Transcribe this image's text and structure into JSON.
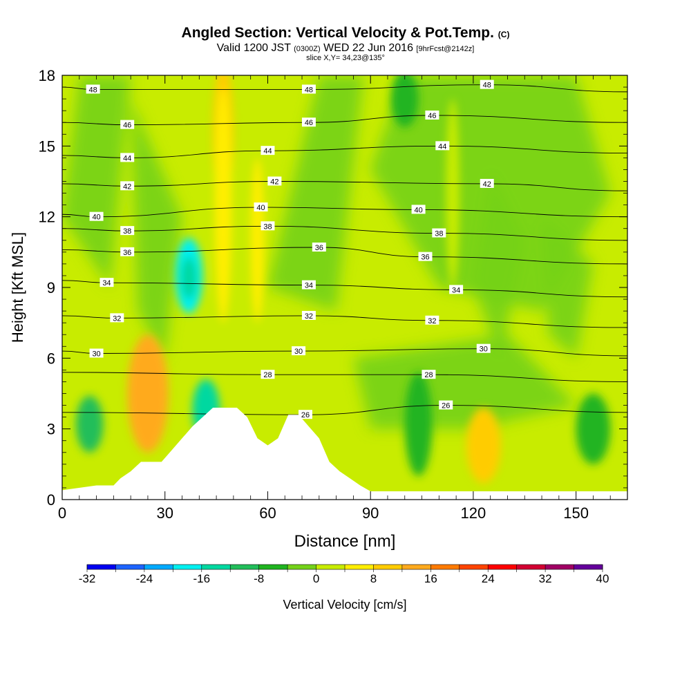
{
  "title": {
    "main": "Angled Section: Vertical Velocity & Pot.Temp.",
    "main_suffix": "(C)",
    "valid_prefix": "Valid 1200 JST",
    "valid_utc": "(0300Z)",
    "valid_date": "WED 22 Jun 2016",
    "forecast": "[9hrFcst@2142z]",
    "slice": "slice X,Y= 34,23@135°"
  },
  "chart_data": {
    "type": "heatmap",
    "xlabel": "Distance [nm]",
    "ylabel": "Height [Kft MSL]",
    "xlim": [
      0,
      165
    ],
    "ylim": [
      0,
      18
    ],
    "x_ticks": [
      0,
      30,
      60,
      90,
      120,
      150
    ],
    "y_ticks": [
      0,
      3,
      6,
      9,
      12,
      15,
      18
    ],
    "colorbar": {
      "label": "Vertical Velocity [cm/s]",
      "ticks": [
        -32,
        -24,
        -16,
        -8,
        0,
        8,
        16,
        24,
        32,
        40
      ],
      "levels": [
        -32,
        -28,
        -24,
        -20,
        -16,
        -12,
        -8,
        -4,
        0,
        4,
        8,
        12,
        16,
        20,
        24,
        28,
        32,
        36,
        40
      ],
      "colors": [
        "#0000f0",
        "#1e64ff",
        "#00aaff",
        "#00f0f0",
        "#00d8a0",
        "#22be5a",
        "#20b420",
        "#74d21a",
        "#c8ec00",
        "#ffee00",
        "#ffcc00",
        "#ffaa1e",
        "#ff7b00",
        "#ff4400",
        "#ff0000",
        "#d20032",
        "#a00064",
        "#64009b"
      ]
    },
    "velocity_features": [
      {
        "x": 37,
        "y": 9.5,
        "rx": 4,
        "ry": 1.6,
        "value": -20
      },
      {
        "x": 37,
        "y": 9.4,
        "rx": 2.3,
        "ry": 0.9,
        "value": -14
      },
      {
        "x": 42,
        "y": 3.8,
        "rx": 4,
        "ry": 1.3,
        "value": -16
      },
      {
        "x": 25,
        "y": 4.5,
        "rx": 6,
        "ry": 2.5,
        "value": 12
      },
      {
        "x": 123,
        "y": 2.3,
        "rx": 5,
        "ry": 1.6,
        "value": 10
      },
      {
        "x": 47,
        "y": 15.5,
        "rx": 3,
        "ry": 3,
        "value": 8
      },
      {
        "x": 104,
        "y": 3.2,
        "rx": 4,
        "ry": 2.2,
        "value": -6
      },
      {
        "x": 100,
        "y": 17,
        "rx": 4,
        "ry": 1.2,
        "value": -6
      }
    ],
    "terrain": [
      [
        0,
        0.4
      ],
      [
        10,
        0.6
      ],
      [
        15,
        0.6
      ],
      [
        17,
        0.9
      ],
      [
        20,
        1.2
      ],
      [
        23,
        1.6
      ],
      [
        26,
        1.6
      ],
      [
        29,
        1.6
      ],
      [
        32,
        2.1
      ],
      [
        35,
        2.6
      ],
      [
        38,
        3.1
      ],
      [
        41,
        3.5
      ],
      [
        44,
        3.9
      ],
      [
        48,
        3.9
      ],
      [
        51,
        3.9
      ],
      [
        54,
        3.5
      ],
      [
        57,
        2.6
      ],
      [
        60,
        2.3
      ],
      [
        63,
        2.6
      ],
      [
        66,
        3.6
      ],
      [
        69,
        3.6
      ],
      [
        72,
        3.1
      ],
      [
        75,
        2.6
      ],
      [
        78,
        1.6
      ],
      [
        81,
        1.2
      ],
      [
        84,
        0.9
      ],
      [
        87,
        0.6
      ],
      [
        90,
        0.35
      ],
      [
        165,
        0.35
      ]
    ],
    "theta_isolines": [
      {
        "label": "26",
        "labels_at": [
          [
            71,
            3.6
          ],
          [
            112,
            4.0
          ]
        ]
      },
      {
        "label": "28",
        "labels_at": [
          [
            60,
            5.3
          ],
          [
            107,
            5.3
          ]
        ]
      },
      {
        "label": "30",
        "labels_at": [
          [
            10,
            6.2
          ],
          [
            69,
            6.3
          ],
          [
            123,
            6.4
          ]
        ]
      },
      {
        "label": "32",
        "labels_at": [
          [
            16,
            7.7
          ],
          [
            72,
            7.8
          ],
          [
            108,
            7.6
          ]
        ]
      },
      {
        "label": "34",
        "labels_at": [
          [
            13,
            9.2
          ],
          [
            72,
            9.1
          ],
          [
            115,
            8.9
          ]
        ]
      },
      {
        "label": "36",
        "labels_at": [
          [
            19,
            10.5
          ],
          [
            75,
            10.7
          ],
          [
            106,
            10.3
          ]
        ]
      },
      {
        "label": "38",
        "labels_at": [
          [
            19,
            11.4
          ],
          [
            60,
            11.6
          ],
          [
            110,
            11.3
          ]
        ]
      },
      {
        "label": "40",
        "labels_at": [
          [
            10,
            12.0
          ],
          [
            58,
            12.4
          ],
          [
            104,
            12.3
          ]
        ]
      },
      {
        "label": "42",
        "labels_at": [
          [
            19,
            13.3
          ],
          [
            62,
            13.5
          ],
          [
            124,
            13.4
          ]
        ]
      },
      {
        "label": "44",
        "labels_at": [
          [
            19,
            14.5
          ],
          [
            60,
            14.8
          ],
          [
            111,
            15.0
          ]
        ]
      },
      {
        "label": "46",
        "labels_at": [
          [
            19,
            15.9
          ],
          [
            72,
            16.0
          ],
          [
            108,
            16.3
          ]
        ]
      },
      {
        "label": "48",
        "labels_at": [
          [
            9,
            17.4
          ],
          [
            72,
            17.4
          ],
          [
            124,
            17.6
          ]
        ]
      }
    ]
  }
}
